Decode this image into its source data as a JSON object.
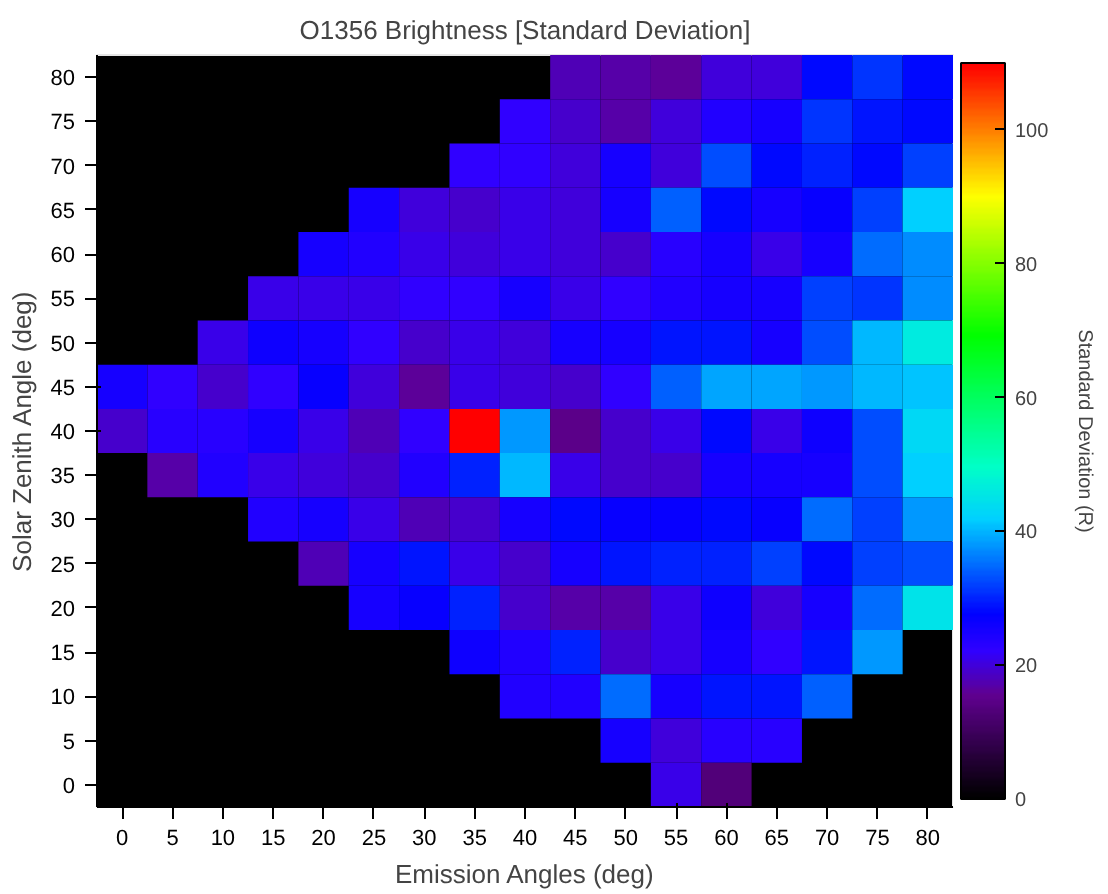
{
  "chart_data": {
    "type": "heatmap",
    "title": "O1356 Brightness [Standard Deviation]",
    "xlabel": "Emission Angles (deg)",
    "ylabel": "Solar Zenith Angle (deg)",
    "clabel": "Standard Deviation (R)",
    "categories": [
      "0",
      "5",
      "10",
      "15",
      "20",
      "25",
      "30",
      "35",
      "40",
      "45",
      "50",
      "55",
      "60",
      "65",
      "70",
      "75",
      "80"
    ],
    "y_categories": [
      "80",
      "75",
      "70",
      "65",
      "60",
      "55",
      "50",
      "45",
      "40",
      "35",
      "30",
      "25",
      "20",
      "15",
      "10",
      "5",
      "0"
    ],
    "cells": [
      [
        null,
        null,
        null,
        null,
        null,
        null,
        null,
        null,
        null,
        18,
        17,
        16,
        20,
        20,
        28,
        31,
        28
      ],
      [
        null,
        null,
        null,
        null,
        null,
        null,
        null,
        null,
        22,
        19,
        17,
        20,
        24,
        25,
        31,
        29,
        28
      ],
      [
        null,
        null,
        null,
        null,
        null,
        null,
        null,
        22,
        22,
        20,
        25,
        20,
        33,
        28,
        30,
        28,
        32
      ],
      [
        null,
        null,
        null,
        null,
        null,
        25,
        20,
        19,
        21,
        20,
        25,
        34,
        28,
        25,
        27,
        32,
        42
      ],
      [
        null,
        null,
        null,
        null,
        25,
        24,
        21,
        20,
        21,
        20,
        19,
        23,
        25,
        21,
        25,
        35,
        37
      ],
      [
        null,
        null,
        null,
        21,
        21,
        21,
        22,
        22,
        25,
        21,
        22,
        24,
        25,
        25,
        32,
        31,
        37
      ],
      [
        null,
        null,
        21,
        26,
        25,
        22,
        19,
        21,
        20,
        25,
        25,
        29,
        29,
        25,
        33,
        40,
        46
      ],
      [
        25,
        22,
        19,
        22,
        27,
        20,
        16,
        21,
        20,
        19,
        22,
        34,
        39,
        39,
        38,
        40,
        41
      ],
      [
        19,
        23,
        23,
        25,
        21,
        18,
        22,
        110,
        38,
        15,
        19,
        21,
        28,
        21,
        26,
        33,
        43
      ],
      [
        null,
        17,
        24,
        21,
        20,
        19,
        24,
        30,
        40,
        21,
        19,
        19,
        25,
        25,
        25,
        33,
        42
      ],
      [
        null,
        null,
        null,
        24,
        25,
        21,
        18,
        19,
        25,
        28,
        27,
        27,
        28,
        27,
        35,
        32,
        38
      ],
      [
        null,
        null,
        null,
        null,
        18,
        25,
        29,
        21,
        19,
        25,
        29,
        30,
        30,
        32,
        28,
        32,
        33
      ],
      [
        null,
        null,
        null,
        null,
        null,
        25,
        27,
        30,
        19,
        17,
        17,
        21,
        26,
        20,
        25,
        35,
        45
      ],
      [
        null,
        null,
        null,
        null,
        null,
        null,
        null,
        26,
        24,
        30,
        19,
        21,
        25,
        22,
        29,
        38,
        null
      ],
      [
        null,
        null,
        null,
        null,
        null,
        null,
        null,
        null,
        24,
        24,
        35,
        25,
        29,
        29,
        34,
        null,
        null
      ],
      [
        null,
        null,
        null,
        null,
        null,
        null,
        null,
        null,
        null,
        null,
        25,
        20,
        23,
        23,
        null,
        null,
        null
      ],
      [
        null,
        null,
        null,
        null,
        null,
        null,
        null,
        null,
        null,
        null,
        null,
        21,
        13,
        null,
        null,
        null,
        null
      ]
    ],
    "clim": [
      0,
      110
    ],
    "cticks": [
      0,
      20,
      40,
      60,
      80,
      100
    ]
  }
}
